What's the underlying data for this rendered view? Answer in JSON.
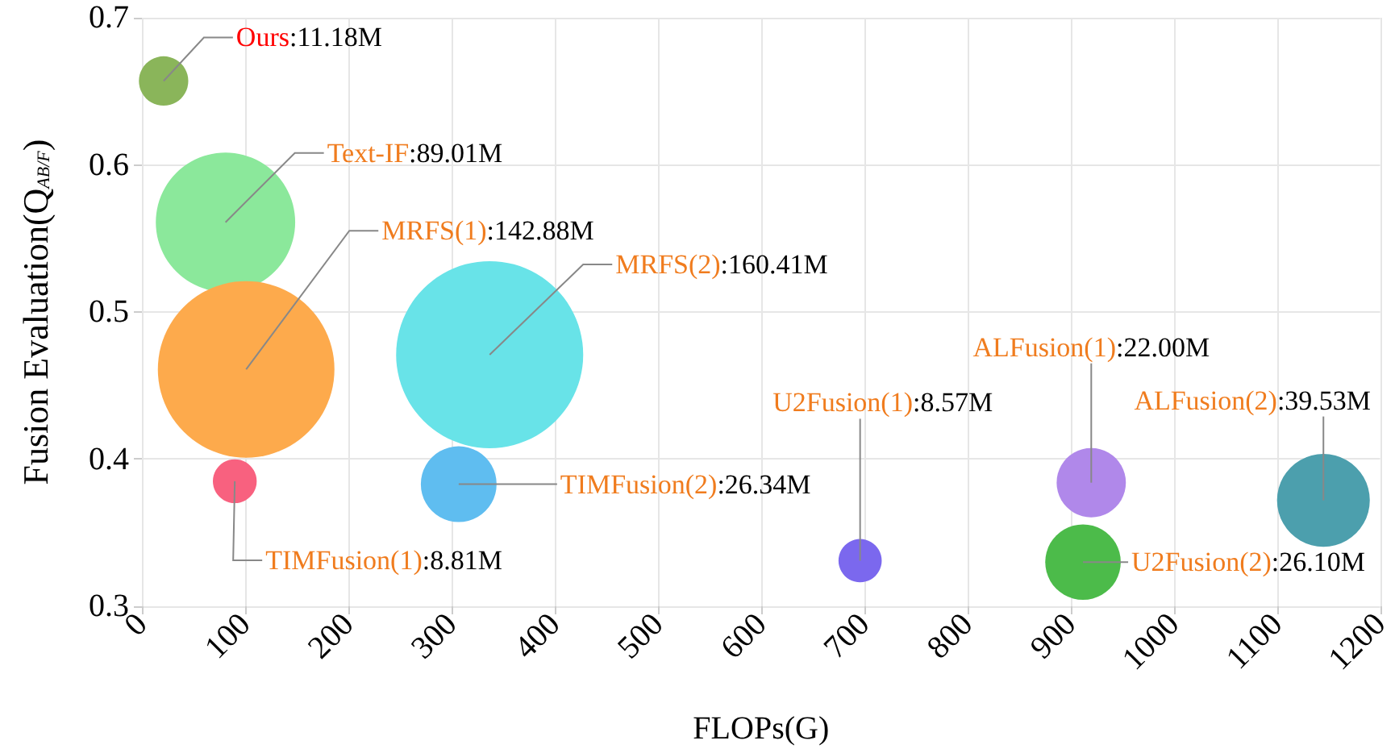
{
  "chart_data": {
    "type": "bubble",
    "xlabel": "FLOPs(G)",
    "ylabel": "Fusion Evaluation(Q$_{AB/F}$)",
    "xlim": [
      0,
      1200
    ],
    "xticks": [
      0,
      100,
      200,
      300,
      400,
      500,
      600,
      700,
      800,
      900,
      1000,
      1100,
      1200
    ],
    "ylim": [
      0.3,
      0.7
    ],
    "yticks": [
      0.3,
      0.4,
      0.5,
      0.6,
      0.7
    ],
    "grid": true,
    "series": [
      {
        "color": "#8ab55a",
        "x": [
          21
        ],
        "values": [
          0.657
        ],
        "sizes": [
          0.0697
        ]
      },
      {
        "color": "#8be89b",
        "x": [
          81
        ],
        "values": [
          0.561
        ],
        "sizes": [
          0.555
        ]
      },
      {
        "color": "#fdaa4c",
        "x": [
          101
        ],
        "values": [
          0.461
        ],
        "sizes": [
          0.891
        ]
      },
      {
        "color": "#68e3e8",
        "x": [
          337
        ],
        "values": [
          0.471
        ],
        "sizes": [
          1
        ]
      },
      {
        "color": "#f8617f",
        "x": [
          90
        ],
        "values": [
          0.385
        ],
        "sizes": [
          0.0549
        ]
      },
      {
        "color": "#5fbdf0",
        "x": [
          307
        ],
        "values": [
          0.383
        ],
        "sizes": [
          0.164
        ]
      },
      {
        "color": "#7b68ee",
        "x": [
          696
        ],
        "values": [
          0.331
        ],
        "sizes": [
          0.0534
        ]
      },
      {
        "color": "#b088ea",
        "x": [
          920
        ],
        "values": [
          0.384
        ],
        "sizes": [
          0.137
        ]
      },
      {
        "color": "#4cbb4a",
        "x": [
          912
        ],
        "values": [
          0.33
        ],
        "sizes": [
          0.163
        ]
      },
      {
        "color": "#4c9fad",
        "x": [
          1145
        ],
        "values": [
          0.372
        ],
        "sizes": [
          0.246
        ]
      }
    ],
    "annotations": [
      {
        "text": "Ours:11.18M",
        "x": 21,
        "y": 0.657
      },
      {
        "text": "Text-IF:89.01M",
        "x": 81,
        "y": 0.561
      },
      {
        "text": "MRFS(1):142.88M",
        "x": 101,
        "y": 0.461
      },
      {
        "text": "MRFS(2):160.41M",
        "x": 337,
        "y": 0.471
      },
      {
        "text": "TIMFusion(1):8.81M",
        "x": 90,
        "y": 0.385
      },
      {
        "text": "TIMFusion(2):26.34M",
        "x": 307,
        "y": 0.383
      },
      {
        "text": "U2Fusion(1):8.57M",
        "x": 696,
        "y": 0.331
      },
      {
        "text": "ALFusion(1):22.00M",
        "x": 920,
        "y": 0.384
      },
      {
        "text": "U2Fusion(2):26.10M",
        "x": 912,
        "y": 0.33
      },
      {
        "text": "ALFusion(2):39.53M",
        "x": 1145,
        "y": 0.372
      }
    ]
  }
}
